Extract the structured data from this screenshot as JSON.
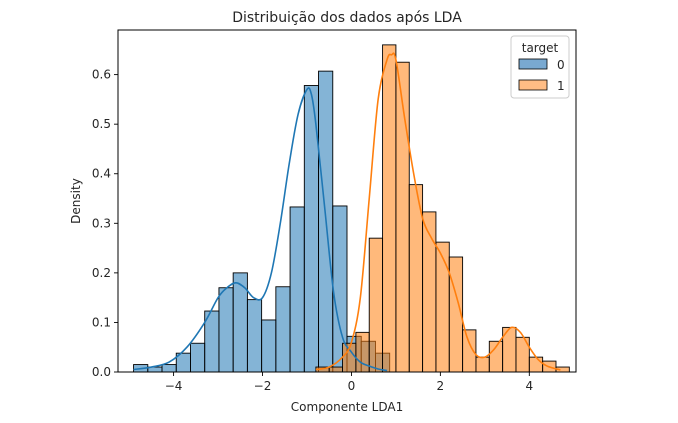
{
  "chart_data": {
    "type": "bar",
    "title": "Distribuição dos dados após LDA",
    "xlabel": "Componente LDA1",
    "ylabel": "Density",
    "xlim": [
      -5.25,
      5.05
    ],
    "ylim": [
      0,
      0.69
    ],
    "x_ticks": [
      -4,
      -2,
      0,
      2,
      4
    ],
    "x_tick_labels": [
      "−4",
      "−2",
      "0",
      "2",
      "4"
    ],
    "y_ticks": [
      0.0,
      0.1,
      0.2,
      0.3,
      0.4,
      0.5,
      0.6
    ],
    "y_tick_labels": [
      "0.0",
      "0.1",
      "0.2",
      "0.3",
      "0.4",
      "0.5",
      "0.6"
    ],
    "grid": false,
    "legend": {
      "title": "target",
      "position": "top-right",
      "entries": [
        "0",
        "1"
      ]
    },
    "series": [
      {
        "name": "0",
        "color": "#1f77b4",
        "bar_fill": "#79a9d1",
        "bins": [
          [
            -4.9,
            -4.58,
            0.015
          ],
          [
            -4.58,
            -4.26,
            0.01
          ],
          [
            -4.26,
            -3.94,
            0.015
          ],
          [
            -3.94,
            -3.62,
            0.038
          ],
          [
            -3.62,
            -3.3,
            0.058
          ],
          [
            -3.3,
            -2.98,
            0.123
          ],
          [
            -2.98,
            -2.66,
            0.17
          ],
          [
            -2.66,
            -2.34,
            0.2
          ],
          [
            -2.34,
            -2.02,
            0.146
          ],
          [
            -2.02,
            -1.7,
            0.105
          ],
          [
            -1.7,
            -1.38,
            0.172
          ],
          [
            -1.38,
            -1.06,
            0.333
          ],
          [
            -1.06,
            -0.74,
            0.578
          ],
          [
            -0.74,
            -0.42,
            0.607
          ],
          [
            -0.42,
            -0.1,
            0.335
          ],
          [
            -0.1,
            0.22,
            0.072
          ],
          [
            0.22,
            0.54,
            0.062
          ],
          [
            0.54,
            0.86,
            0.038
          ]
        ],
        "kde_x": [
          -4.9,
          -4.5,
          -4.1,
          -3.7,
          -3.3,
          -3.0,
          -2.8,
          -2.6,
          -2.4,
          -2.2,
          -2.0,
          -1.8,
          -1.6,
          -1.4,
          -1.2,
          -1.0,
          -0.9,
          -0.8,
          -0.6,
          -0.4,
          -0.2,
          0.0,
          0.2,
          0.4,
          0.6,
          0.8
        ],
        "kde_y": [
          0.005,
          0.01,
          0.02,
          0.05,
          0.1,
          0.15,
          0.17,
          0.18,
          0.17,
          0.15,
          0.15,
          0.2,
          0.3,
          0.42,
          0.52,
          0.57,
          0.56,
          0.5,
          0.33,
          0.16,
          0.07,
          0.04,
          0.02,
          0.012,
          0.006,
          0.003
        ]
      },
      {
        "name": "1",
        "color": "#ff7f0e",
        "bar_fill": "#ffbd85",
        "bins": [
          [
            -0.8,
            -0.5,
            0.01
          ],
          [
            -0.5,
            -0.2,
            0.01
          ],
          [
            -0.2,
            0.1,
            0.058
          ],
          [
            0.1,
            0.4,
            0.08
          ],
          [
            0.4,
            0.7,
            0.27
          ],
          [
            0.7,
            1.0,
            0.66
          ],
          [
            1.0,
            1.3,
            0.625
          ],
          [
            1.3,
            1.6,
            0.378
          ],
          [
            1.6,
            1.9,
            0.323
          ],
          [
            1.9,
            2.2,
            0.262
          ],
          [
            2.2,
            2.5,
            0.232
          ],
          [
            2.5,
            2.8,
            0.085
          ],
          [
            2.8,
            3.1,
            0.03
          ],
          [
            3.1,
            3.4,
            0.062
          ],
          [
            3.4,
            3.7,
            0.09
          ],
          [
            3.7,
            4.0,
            0.07
          ],
          [
            4.0,
            4.3,
            0.03
          ],
          [
            4.3,
            4.6,
            0.022
          ],
          [
            4.6,
            4.9,
            0.01
          ]
        ],
        "kde_x": [
          -0.8,
          -0.5,
          -0.2,
          0.0,
          0.2,
          0.4,
          0.6,
          0.8,
          0.9,
          1.0,
          1.2,
          1.4,
          1.6,
          1.8,
          2.0,
          2.2,
          2.4,
          2.6,
          2.8,
          3.0,
          3.2,
          3.4,
          3.6,
          3.8,
          4.0,
          4.2,
          4.4,
          4.7
        ],
        "kde_y": [
          0.005,
          0.01,
          0.03,
          0.06,
          0.15,
          0.35,
          0.55,
          0.63,
          0.64,
          0.63,
          0.51,
          0.4,
          0.31,
          0.27,
          0.24,
          0.2,
          0.14,
          0.07,
          0.035,
          0.03,
          0.045,
          0.07,
          0.09,
          0.08,
          0.05,
          0.025,
          0.012,
          0.004
        ]
      }
    ]
  }
}
